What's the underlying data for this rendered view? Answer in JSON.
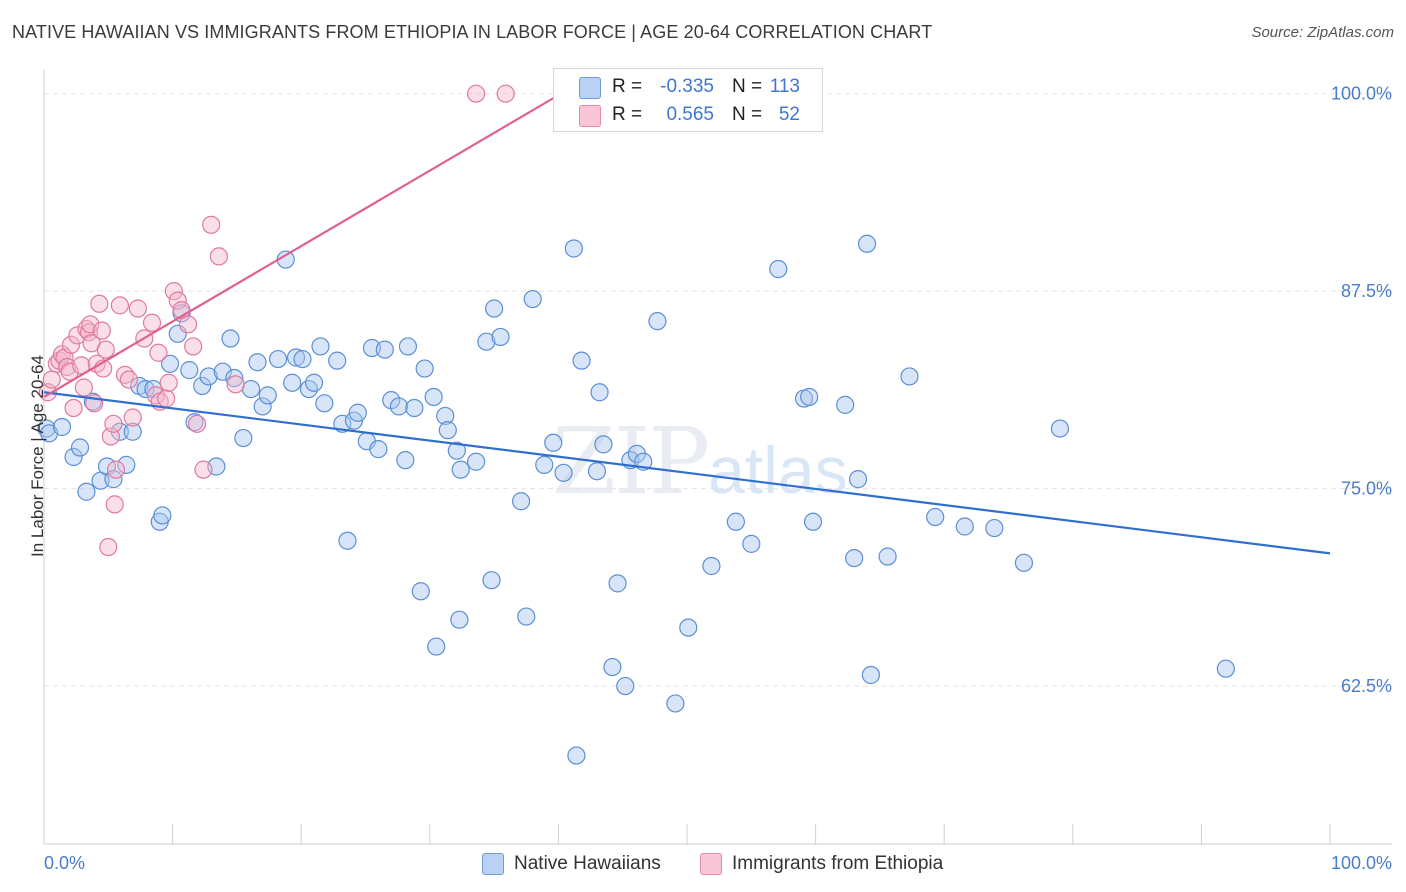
{
  "title": "NATIVE HAWAIIAN VS IMMIGRANTS FROM ETHIOPIA IN LABOR FORCE | AGE 20-64 CORRELATION CHART",
  "source": "Source: ZipAtlas.com",
  "watermark": {
    "main": "ZIP",
    "small": "atlas"
  },
  "colors": {
    "blue_fill": "#a9c6ef",
    "blue_stroke": "#5b8fd6",
    "blue_line": "#2f6fd0",
    "pink_fill": "#f5b8cd",
    "pink_stroke": "#e07aa0",
    "pink_line": "#e0608e",
    "tick_text": "#4a7cc9",
    "grid": "#e3e3e3"
  },
  "legend": [
    {
      "r_label": "R =",
      "r_value": "-0.335",
      "n_label": "N =",
      "n_value": "113"
    },
    {
      "r_label": "R =",
      "r_value": "0.565",
      "n_label": "N =",
      "n_value": "52"
    }
  ],
  "chart_data": {
    "type": "scatter",
    "title": "NATIVE HAWAIIAN VS IMMIGRANTS FROM ETHIOPIA IN LABOR FORCE | AGE 20-64 CORRELATION CHART",
    "xlabel": "",
    "ylabel": "In Labor Force | Age 20-64",
    "xlim": [
      0,
      100
    ],
    "ylim": [
      52.5,
      101.5
    ],
    "x_tick_labels": [
      "0.0%",
      "100.0%"
    ],
    "y_ticks": [
      62.5,
      75.0,
      87.5,
      100.0
    ],
    "y_tick_labels": [
      "62.5%",
      "75.0%",
      "87.5%",
      "100.0%"
    ],
    "grid": true,
    "legend_position": "bottom",
    "series": [
      {
        "name": "Native Hawaiians",
        "trend": {
          "x": [
            0,
            100
          ],
          "y": [
            81.1,
            70.9
          ]
        },
        "points": [
          [
            0.2,
            78.8
          ],
          [
            0.4,
            78.5
          ],
          [
            1.4,
            78.9
          ],
          [
            2.3,
            77.0
          ],
          [
            2.8,
            77.6
          ],
          [
            3.3,
            74.8
          ],
          [
            3.8,
            80.5
          ],
          [
            4.4,
            75.5
          ],
          [
            4.9,
            76.4
          ],
          [
            5.4,
            75.6
          ],
          [
            5.9,
            78.6
          ],
          [
            6.4,
            76.5
          ],
          [
            6.9,
            78.6
          ],
          [
            7.4,
            81.5
          ],
          [
            7.9,
            81.3
          ],
          [
            8.5,
            81.3
          ],
          [
            9.0,
            72.9
          ],
          [
            9.2,
            73.3
          ],
          [
            9.8,
            82.9
          ],
          [
            10.4,
            84.8
          ],
          [
            10.7,
            86.1
          ],
          [
            11.3,
            82.5
          ],
          [
            11.7,
            79.2
          ],
          [
            12.3,
            81.5
          ],
          [
            12.8,
            82.1
          ],
          [
            13.4,
            76.4
          ],
          [
            13.9,
            82.4
          ],
          [
            14.5,
            84.5
          ],
          [
            14.8,
            82.0
          ],
          [
            15.5,
            78.2
          ],
          [
            16.1,
            81.3
          ],
          [
            16.6,
            83.0
          ],
          [
            17.0,
            80.2
          ],
          [
            17.4,
            80.9
          ],
          [
            18.2,
            83.2
          ],
          [
            18.8,
            89.5
          ],
          [
            19.3,
            81.7
          ],
          [
            19.6,
            83.3
          ],
          [
            20.1,
            83.2
          ],
          [
            20.6,
            81.3
          ],
          [
            21.0,
            81.7
          ],
          [
            21.5,
            84.0
          ],
          [
            21.8,
            80.4
          ],
          [
            22.8,
            83.1
          ],
          [
            23.2,
            79.1
          ],
          [
            23.6,
            71.7
          ],
          [
            24.1,
            79.3
          ],
          [
            24.4,
            79.8
          ],
          [
            25.1,
            78.0
          ],
          [
            25.5,
            83.9
          ],
          [
            26.0,
            77.5
          ],
          [
            26.5,
            83.8
          ],
          [
            27.0,
            80.6
          ],
          [
            27.6,
            80.2
          ],
          [
            28.1,
            76.8
          ],
          [
            28.3,
            84.0
          ],
          [
            28.8,
            80.1
          ],
          [
            29.3,
            68.5
          ],
          [
            29.6,
            82.6
          ],
          [
            30.3,
            80.8
          ],
          [
            30.5,
            65.0
          ],
          [
            31.2,
            79.6
          ],
          [
            31.4,
            78.7
          ],
          [
            32.1,
            77.4
          ],
          [
            32.3,
            66.7
          ],
          [
            32.4,
            76.2
          ],
          [
            33.6,
            76.7
          ],
          [
            34.4,
            84.3
          ],
          [
            34.8,
            69.2
          ],
          [
            35.0,
            86.4
          ],
          [
            35.5,
            84.6
          ],
          [
            37.1,
            74.2
          ],
          [
            37.5,
            66.9
          ],
          [
            38.0,
            87.0
          ],
          [
            38.9,
            76.5
          ],
          [
            39.6,
            77.9
          ],
          [
            40.4,
            76.0
          ],
          [
            41.2,
            90.2
          ],
          [
            41.4,
            58.1
          ],
          [
            41.8,
            83.1
          ],
          [
            43.0,
            76.1
          ],
          [
            43.2,
            81.1
          ],
          [
            43.5,
            77.8
          ],
          [
            44.2,
            63.7
          ],
          [
            44.6,
            69.0
          ],
          [
            45.2,
            62.5
          ],
          [
            45.6,
            76.8
          ],
          [
            46.1,
            77.2
          ],
          [
            46.6,
            76.7
          ],
          [
            47.7,
            85.6
          ],
          [
            49.1,
            61.4
          ],
          [
            50.1,
            66.2
          ],
          [
            51.9,
            70.1
          ],
          [
            53.8,
            72.9
          ],
          [
            55.0,
            71.5
          ],
          [
            57.1,
            88.9
          ],
          [
            59.1,
            80.7
          ],
          [
            59.5,
            80.8
          ],
          [
            59.8,
            72.9
          ],
          [
            62.3,
            80.3
          ],
          [
            63.0,
            70.6
          ],
          [
            63.3,
            75.6
          ],
          [
            64.0,
            90.5
          ],
          [
            64.3,
            63.2
          ],
          [
            65.6,
            70.7
          ],
          [
            67.3,
            82.1
          ],
          [
            69.3,
            73.2
          ],
          [
            71.6,
            72.6
          ],
          [
            73.9,
            72.5
          ],
          [
            76.2,
            70.3
          ],
          [
            79.0,
            78.8
          ],
          [
            91.9,
            63.6
          ]
        ]
      },
      {
        "name": "Immigrants from Ethiopia",
        "trend": {
          "x": [
            0,
            40.2
          ],
          "y": [
            80.8,
            100.0
          ]
        },
        "points": [
          [
            0.3,
            81.1
          ],
          [
            0.6,
            81.9
          ],
          [
            1.0,
            82.9
          ],
          [
            1.2,
            83.1
          ],
          [
            1.4,
            83.5
          ],
          [
            1.6,
            83.3
          ],
          [
            1.8,
            82.7
          ],
          [
            2.0,
            82.4
          ],
          [
            2.1,
            84.1
          ],
          [
            2.3,
            80.1
          ],
          [
            2.6,
            84.7
          ],
          [
            2.9,
            82.8
          ],
          [
            3.1,
            81.4
          ],
          [
            3.3,
            85.1
          ],
          [
            3.5,
            84.9
          ],
          [
            3.6,
            85.4
          ],
          [
            3.7,
            84.2
          ],
          [
            3.9,
            80.4
          ],
          [
            4.1,
            82.9
          ],
          [
            4.3,
            86.7
          ],
          [
            4.5,
            85.0
          ],
          [
            4.6,
            82.6
          ],
          [
            4.8,
            83.8
          ],
          [
            5.0,
            71.3
          ],
          [
            5.2,
            78.3
          ],
          [
            5.4,
            79.1
          ],
          [
            5.6,
            76.2
          ],
          [
            5.9,
            86.6
          ],
          [
            6.3,
            82.2
          ],
          [
            6.6,
            81.9
          ],
          [
            6.9,
            79.5
          ],
          [
            7.3,
            86.4
          ],
          [
            7.8,
            84.5
          ],
          [
            8.4,
            85.5
          ],
          [
            8.7,
            80.9
          ],
          [
            8.9,
            83.6
          ],
          [
            9.0,
            80.5
          ],
          [
            9.5,
            80.7
          ],
          [
            9.7,
            81.7
          ],
          [
            10.1,
            87.5
          ],
          [
            10.4,
            86.9
          ],
          [
            10.7,
            86.3
          ],
          [
            11.2,
            85.4
          ],
          [
            11.6,
            84.0
          ],
          [
            11.9,
            79.1
          ],
          [
            12.4,
            76.2
          ],
          [
            13.0,
            91.7
          ],
          [
            13.6,
            89.7
          ],
          [
            14.9,
            81.6
          ],
          [
            33.6,
            100.0
          ],
          [
            35.9,
            100.0
          ],
          [
            5.5,
            74.0
          ]
        ]
      }
    ]
  }
}
